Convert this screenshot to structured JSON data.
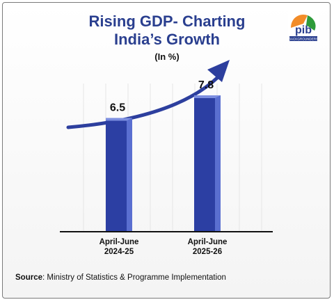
{
  "title_line1": "Rising GDP- Charting",
  "title_line2": "India’s Growth",
  "subtitle": "(In %)",
  "logo": {
    "text": "pib",
    "caption": "BACKGROUNDERS"
  },
  "source": {
    "label": "Source",
    "text": ": Ministry of Statistics & Programme Implementation"
  },
  "colors": {
    "title": "#2a3f8f",
    "bar_front": "#2c3fa3",
    "bar_side": "#5a6fd0",
    "bar_top": "#7d8fe0",
    "arrow": "#2d3f9e"
  },
  "chart_data": {
    "type": "bar",
    "title": "Rising GDP- Charting India’s Growth",
    "ylabel": "(In %)",
    "categories": [
      [
        "April-June",
        "2024-25"
      ],
      [
        "April-June",
        "2025-26"
      ]
    ],
    "values": [
      6.5,
      7.8
    ],
    "data_labels": [
      "6.5",
      "7.8"
    ],
    "ylim": [
      0,
      10
    ],
    "grid": false,
    "trend_arrow": true
  }
}
